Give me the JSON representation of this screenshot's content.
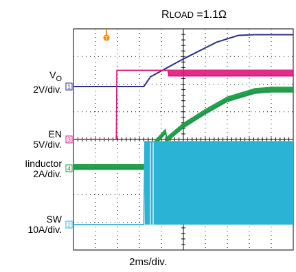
{
  "title": {
    "prefix": "R",
    "small": "LOAD",
    "suffix": " =1.1Ω"
  },
  "channels": [
    {
      "id": "vo",
      "name": "V",
      "sub": "O",
      "scale": "2V/div.",
      "marker": "1",
      "color": "#2a2f86"
    },
    {
      "id": "en",
      "name": "EN",
      "scale": "5V/div.",
      "marker": "3",
      "color": "#e0157d"
    },
    {
      "id": "il",
      "name": "Iinductor",
      "scale": "2A/div.",
      "marker": "4",
      "color": "#1a9a45"
    },
    {
      "id": "sw",
      "name": "SW",
      "scale": "10A/div.",
      "marker": "2",
      "color": "#2bb3d6"
    }
  ],
  "trigger_marker": "T",
  "x_label": "2ms/div.",
  "chart_data": {
    "type": "line",
    "title": "RLOAD =1.1Ω",
    "xlabel": "2ms/div.",
    "x_units": "ms",
    "xlim": [
      0,
      20
    ],
    "grid": true,
    "series": [
      {
        "name": "VO",
        "scale": "2V/div.",
        "color": "#2a2f86",
        "x": [
          0,
          6.4,
          7.0,
          10.0,
          13.0,
          15.0,
          16.5,
          20
        ],
        "y": [
          0,
          0,
          0.7,
          2.0,
          3.2,
          3.7,
          3.75,
          3.75
        ]
      },
      {
        "name": "EN",
        "scale": "5V/div.",
        "color": "#e0157d",
        "x": [
          0,
          3.9,
          3.95,
          8.6,
          8.7,
          20
        ],
        "y": [
          0,
          0,
          12.5,
          12.5,
          11.5,
          11.5
        ]
      },
      {
        "name": "Iinductor",
        "scale": "2A/div.",
        "color": "#1a9a45",
        "x": [
          0,
          6.4,
          6.8,
          8.4,
          8.5,
          10,
          12,
          14,
          16.5,
          18,
          20
        ],
        "y": [
          0,
          0,
          1.2,
          2.6,
          2.0,
          3.0,
          4.0,
          4.9,
          5.5,
          5.6,
          5.6
        ]
      },
      {
        "name": "SW",
        "scale": "10A/div.",
        "color": "#2bb3d6",
        "x": [
          0,
          6.4,
          6.5,
          20
        ],
        "y": [
          0,
          0,
          30,
          30
        ]
      }
    ]
  }
}
